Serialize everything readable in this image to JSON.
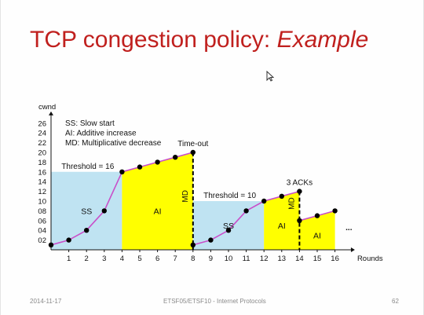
{
  "slide": {
    "title_main": "TCP congestion policy: ",
    "title_emph": "Example",
    "footer_date": "2014-11-17",
    "footer_course": "ETSF05/ETSF10 - Internet Protocols",
    "footer_page": "62",
    "title_color": "#c0201e"
  },
  "chart_data": {
    "type": "line",
    "ylabel": "cwnd",
    "xlabel": "Rounds",
    "ylim": [
      0,
      26
    ],
    "xlim": [
      0,
      16
    ],
    "y_ticks": [
      "02",
      "04",
      "06",
      "08",
      "10",
      "12",
      "14",
      "16",
      "18",
      "20",
      "22",
      "24",
      "26"
    ],
    "x_ticks": [
      "1",
      "2",
      "3",
      "4",
      "5",
      "6",
      "7",
      "8",
      "9",
      "10",
      "11",
      "12",
      "13",
      "14",
      "15",
      "16"
    ],
    "x": [
      0,
      1,
      2,
      3,
      4,
      5,
      6,
      7,
      8,
      8,
      9,
      10,
      11,
      12,
      13,
      14,
      14,
      15,
      16
    ],
    "y": [
      1,
      2,
      4,
      8,
      16,
      17,
      18,
      19,
      20,
      1,
      2,
      4,
      8,
      10,
      11,
      12,
      6,
      7,
      8
    ],
    "legend": [
      "SS: Slow start",
      "AI: Additive increase",
      "MD: Multiplicative decrease"
    ],
    "regions": [
      {
        "label": "SS",
        "x_start": 0,
        "x_end": 4,
        "top": 16,
        "color": "#bfe3f2"
      },
      {
        "label": "AI",
        "x_start": 4,
        "x_end": 8,
        "color": "#ffff00"
      },
      {
        "label": "SS",
        "x_start": 8,
        "x_end": 12,
        "top": 10,
        "color": "#bfe3f2"
      },
      {
        "label": "AI",
        "x_start": 12,
        "x_end": 14,
        "color": "#ffff00"
      },
      {
        "label": "AI",
        "x_start": 14,
        "x_end": 16,
        "color": "#ffff00"
      }
    ],
    "md_markers": [
      {
        "x": 8,
        "label": "MD"
      },
      {
        "x": 14,
        "label": "MD"
      }
    ],
    "annotations": [
      {
        "text": "Threshold = 16",
        "x": 0.5,
        "y": 16
      },
      {
        "text": "Threshold = 10",
        "x": 8.5,
        "y": 10
      },
      {
        "text": "Time-out",
        "x": 8,
        "y": 20
      },
      {
        "text": "3 ACKs",
        "x": 14,
        "y": 12
      },
      {
        "text": "...",
        "x": 16.6,
        "y": 4
      }
    ],
    "grid": false,
    "line_color": "#c94fc9",
    "point_color": "#000000"
  }
}
